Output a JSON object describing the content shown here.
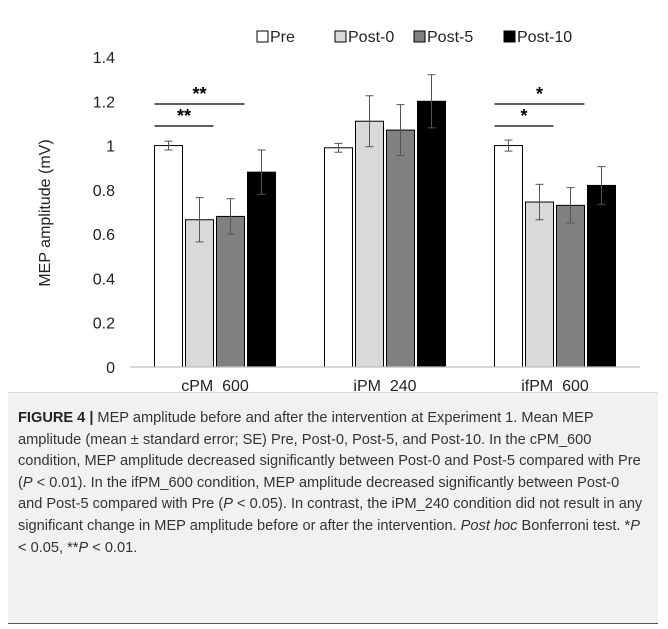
{
  "chart_data": {
    "type": "bar",
    "title": "",
    "xlabel": "",
    "ylabel": "MEP amplitude (mV)",
    "ylim": [
      0,
      1.4
    ],
    "yticks": [
      "0",
      "0.2",
      "0.4",
      "0.6",
      "0.8",
      "1",
      "1.2",
      "1.4"
    ],
    "grid": false,
    "legend_position": "top",
    "categories": [
      "cPM_600",
      "iPM_240",
      "ifPM_600"
    ],
    "series": [
      {
        "name": "Pre",
        "color": "#ffffff",
        "values": [
          1.0,
          0.99,
          1.0
        ],
        "errors": [
          0.02,
          0.02,
          0.025
        ]
      },
      {
        "name": "Post-0",
        "color": "#d9d9d9",
        "values": [
          0.665,
          1.11,
          0.745
        ],
        "errors": [
          0.1,
          0.115,
          0.08
        ]
      },
      {
        "name": "Post-5",
        "color": "#808080",
        "values": [
          0.68,
          1.07,
          0.73
        ],
        "errors": [
          0.08,
          0.115,
          0.08
        ]
      },
      {
        "name": "Post-10",
        "color": "#000000",
        "values": [
          0.88,
          1.2,
          0.82
        ],
        "errors": [
          0.1,
          0.12,
          0.085
        ]
      }
    ],
    "significance": [
      {
        "category": 0,
        "from": "Pre",
        "to": "Post-0",
        "label": "**"
      },
      {
        "category": 0,
        "from": "Pre",
        "to": "Post-5",
        "label": "**"
      },
      {
        "category": 2,
        "from": "Pre",
        "to": "Post-0",
        "label": "*"
      },
      {
        "category": 2,
        "from": "Pre",
        "to": "Post-5",
        "label": "*"
      }
    ]
  },
  "caption": {
    "figure_label": "FIGURE 4",
    "separator": "|",
    "part1": "MEP amplitude before and after the intervention at Experiment 1. Mean MEP amplitude (mean ± standard error; SE) Pre, Post-0, Post-5, and Post-10. In the cPM_600 condition, MEP amplitude decreased significantly between Post-0 and Post-5 compared with Pre (",
    "p_symbol_1": "P",
    "part2": " < 0.01). In the ifPM_600 condition, MEP amplitude decreased significantly between Post-0 and Post-5 compared with Pre (",
    "p_symbol_2": "P",
    "part3": " < 0.05). In contrast, the iPM_240 condition did not result in any significant change in MEP amplitude before or after the intervention. ",
    "post_hoc": "Post hoc",
    "part4": " Bonferroni test. *",
    "p_symbol_3": "P",
    "part5": " < 0.05, **",
    "p_symbol_4": "P",
    "part6": " < 0.01."
  }
}
